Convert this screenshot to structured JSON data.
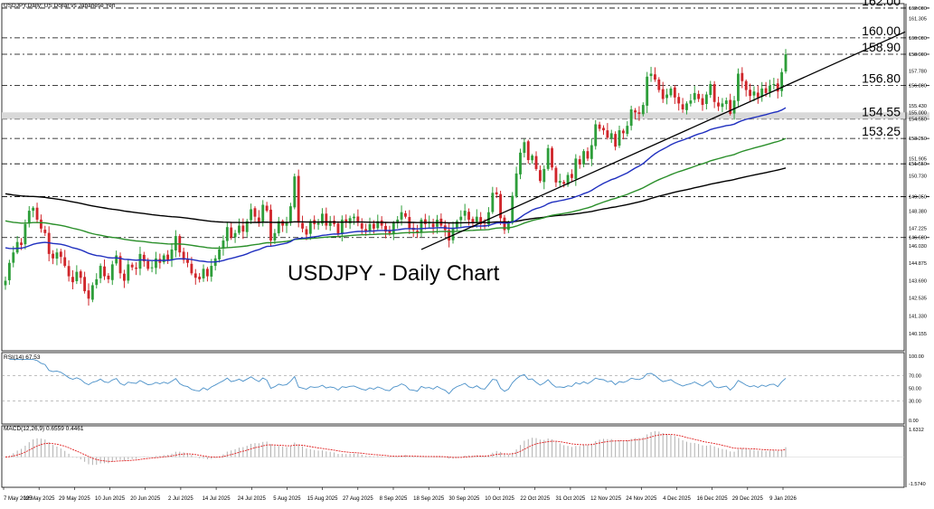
{
  "window": {
    "title": "USDJPY,Daily: US Dollar vs Japanese Yen",
    "watermark": "USDJPY - Daily Chart"
  },
  "colors": {
    "bull": "#2e9e3a",
    "bear": "#d0262b",
    "sma50": "#1f2fbf",
    "sma100": "#2a8f2a",
    "sma200": "#000000",
    "trendline": "#000000",
    "rsi": "#4a90c8",
    "macd_hist": "#b0b0b0",
    "macd_signal": "#e02020",
    "band": "#d9d9d9"
  },
  "chart_data": [
    {
      "type": "candlestick",
      "title": "USDJPY,Daily: US Dollar vs Japanese Yen",
      "ylim": [
        139.0,
        162.3
      ],
      "grid": false,
      "price_ticks": [
        "162.000",
        "161.305",
        "160.000",
        "158.900",
        "157.780",
        "156.800",
        "155.430",
        "155.000",
        "154.550",
        "153.250",
        "151.905",
        "151.550",
        "150.730",
        "149.350",
        "148.380",
        "147.225",
        "146.600",
        "146.030",
        "144.875",
        "143.690",
        "142.535",
        "141.330",
        "140.155"
      ],
      "horizontal_levels": [
        {
          "value": 162.0,
          "label": "162.00"
        },
        {
          "value": 160.0,
          "label": "160.00"
        },
        {
          "value": 158.9,
          "label": "158.90"
        },
        {
          "value": 156.8,
          "label": "156.80"
        },
        {
          "value": 154.55,
          "label": "154.55"
        },
        {
          "value": 153.25,
          "label": "153.25"
        },
        {
          "value": 151.55,
          "label": ""
        },
        {
          "value": 149.35,
          "label": ""
        },
        {
          "value": 146.6,
          "label": ""
        }
      ],
      "support_band": [
        154.55,
        155.0
      ],
      "date_labels": [
        "7 May 2025",
        "19 May 2025",
        "29 May 2025",
        "10 Jun 2025",
        "20 Jun 2025",
        "2 Jul 2025",
        "14 Jul 2025",
        "24 Jul 2025",
        "5 Aug 2025",
        "15 Aug 2025",
        "27 Aug 2025",
        "8 Sep 2025",
        "18 Sep 2025",
        "30 Sep 2025",
        "10 Oct 2025",
        "22 Oct 2025",
        "31 Oct 2025",
        "12 Nov 2025",
        "24 Nov 2025",
        "4 Dec 2025",
        "16 Dec 2025",
        "29 Dec 2025",
        "9 Jan 2026"
      ],
      "close": [
        143.7,
        144.9,
        145.6,
        146.3,
        146.1,
        147.5,
        148.4,
        148.6,
        147.8,
        147.2,
        146.9,
        145.5,
        145.2,
        145.6,
        145.3,
        144.7,
        144.0,
        143.6,
        144.3,
        143.9,
        143.0,
        142.5,
        143.4,
        143.8,
        144.7,
        144.0,
        143.8,
        144.8,
        145.4,
        144.2,
        143.7,
        144.8,
        144.6,
        144.5,
        145.5,
        145.0,
        144.5,
        144.6,
        145.2,
        144.9,
        145.4,
        145.1,
        145.8,
        146.7,
        145.6,
        145.1,
        144.9,
        144.2,
        143.9,
        143.8,
        144.5,
        144.0,
        144.7,
        145.2,
        145.8,
        146.4,
        147.3,
        146.6,
        146.9,
        147.4,
        147.0,
        147.7,
        148.5,
        148.0,
        147.6,
        148.8,
        148.4,
        146.4,
        146.9,
        147.7,
        147.4,
        147.6,
        148.7,
        150.7,
        147.6,
        147.2,
        146.8,
        147.7,
        147.5,
        147.6,
        148.2,
        147.4,
        147.7,
        147.5,
        146.8,
        147.8,
        147.6,
        147.9,
        148.0,
        147.6,
        147.2,
        147.0,
        147.5,
        147.2,
        147.7,
        147.4,
        147.0,
        146.9,
        147.6,
        147.8,
        148.3,
        148.0,
        147.2,
        147.1,
        146.9,
        147.8,
        147.5,
        147.6,
        147.3,
        147.8,
        147.4,
        147.1,
        146.4,
        147.2,
        147.7,
        148.0,
        148.4,
        147.8,
        147.6,
        148.0,
        147.5,
        147.4,
        148.3,
        149.6,
        149.5,
        147.9,
        147.1,
        147.6,
        149.4,
        150.9,
        152.3,
        153.0,
        151.8,
        152.1,
        151.2,
        150.4,
        151.2,
        152.6,
        151.3,
        150.3,
        150.4,
        150.2,
        150.8,
        150.6,
        151.9,
        151.5,
        152.4,
        151.9,
        152.8,
        154.2,
        153.9,
        153.8,
        153.3,
        153.6,
        152.7,
        153.8,
        153.6,
        154.1,
        155.2,
        155.0,
        154.9,
        155.5,
        157.4,
        157.6,
        157.2,
        156.5,
        155.9,
        156.2,
        156.6,
        156.0,
        155.6,
        155.2,
        155.6,
        155.8,
        156.3,
        155.9,
        155.5,
        156.2,
        156.9,
        155.7,
        155.4,
        155.6,
        155.8,
        154.9,
        155.8,
        157.6,
        157.1,
        156.5,
        156.1,
        156.4,
        156.0,
        156.6,
        156.3,
        156.8,
        156.9,
        156.4,
        157.7,
        158.9
      ],
      "sma_periods": [
        50,
        100,
        200
      ],
      "trendline": {
        "from": {
          "date": "12 Sep 2025",
          "price": 145.8
        },
        "to": {
          "date": "20 Jan 2026",
          "price": 160.4
        }
      }
    },
    {
      "type": "line",
      "title": "RSI(14) 67.53",
      "ylim": [
        0,
        100
      ],
      "levels": [
        {
          "value": 100,
          "label": "100.00"
        },
        {
          "value": 70,
          "label": "70.00"
        },
        {
          "value": 50,
          "label": "50.00"
        },
        {
          "value": 30,
          "label": "30.00"
        },
        {
          "value": 0,
          "label": "0.00"
        }
      ],
      "period": 14
    },
    {
      "type": "histogram",
      "title": "MACD(12,26,9) 0.6559 0.4461",
      "labels": [
        "1.6312",
        "-1.5740"
      ],
      "ylim": [
        -1.574,
        1.6312
      ],
      "params": [
        12,
        26,
        9
      ]
    }
  ]
}
